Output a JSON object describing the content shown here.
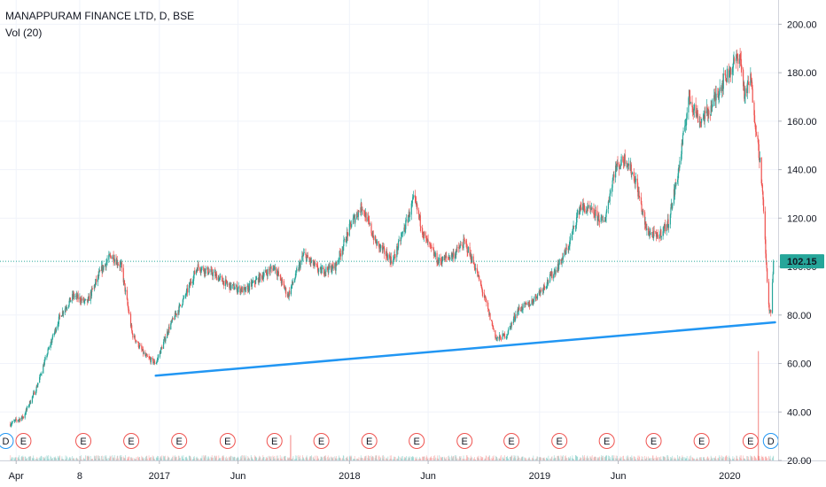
{
  "header": {
    "title": "MANAPPURAM FINANCE LTD, D, BSE",
    "indicator": "Vol (20)"
  },
  "colors": {
    "up": "#26a69a",
    "down": "#ef5350",
    "trendline": "#2196f3",
    "price_line": "#26a69a",
    "badge_dividend": "#2196f3",
    "badge_earnings": "#ef5350"
  },
  "chart_data": {
    "type": "candlestick",
    "title": "MANAPPURAM FINANCE LTD, D, BSE",
    "ylim": [
      20,
      210
    ],
    "y_ticks": [
      20,
      40,
      60,
      80,
      100,
      120,
      140,
      160,
      180,
      200
    ],
    "y_tick_labels": [
      "20.00",
      "40.00",
      "60.00",
      "80.00",
      "100.00",
      "120.00",
      "140.00",
      "160.00",
      "180.00",
      "200.00"
    ],
    "x_labels": [
      "Apr",
      "8",
      "2017",
      "Jun",
      "2018",
      "Jun",
      "2019",
      "Jun",
      "2020"
    ],
    "x_label_dates": [
      "2016-04",
      "2016-08",
      "2017-01",
      "2017-06",
      "2018-01",
      "2018-06",
      "2019-01",
      "2019-06",
      "2020-01"
    ],
    "last_price": 102.15,
    "last_price_label": "102.15",
    "price_path": [
      [
        "2016-03-20",
        35
      ],
      [
        "2016-04-15",
        38
      ],
      [
        "2016-05-10",
        50
      ],
      [
        "2016-06-01",
        65
      ],
      [
        "2016-06-25",
        80
      ],
      [
        "2016-07-20",
        88
      ],
      [
        "2016-08-15",
        85
      ],
      [
        "2016-09-10",
        98
      ],
      [
        "2016-10-01",
        105
      ],
      [
        "2016-10-20",
        100
      ],
      [
        "2016-11-10",
        72
      ],
      [
        "2016-12-05",
        63
      ],
      [
        "2016-12-25",
        60
      ],
      [
        "2017-01-20",
        75
      ],
      [
        "2017-02-20",
        88
      ],
      [
        "2017-03-15",
        100
      ],
      [
        "2017-04-15",
        97
      ],
      [
        "2017-05-15",
        92
      ],
      [
        "2017-06-15",
        90
      ],
      [
        "2017-07-10",
        95
      ],
      [
        "2017-08-10",
        100
      ],
      [
        "2017-09-05",
        88
      ],
      [
        "2017-10-05",
        105
      ],
      [
        "2017-11-05",
        98
      ],
      [
        "2017-12-05",
        100
      ],
      [
        "2018-01-05",
        118
      ],
      [
        "2018-01-25",
        125
      ],
      [
        "2018-02-20",
        110
      ],
      [
        "2018-03-25",
        102
      ],
      [
        "2018-04-20",
        118
      ],
      [
        "2018-05-05",
        128
      ],
      [
        "2018-05-25",
        112
      ],
      [
        "2018-06-20",
        102
      ],
      [
        "2018-07-20",
        105
      ],
      [
        "2018-08-10",
        110
      ],
      [
        "2018-08-30",
        100
      ],
      [
        "2018-09-20",
        85
      ],
      [
        "2018-10-10",
        70
      ],
      [
        "2018-10-30",
        72
      ],
      [
        "2018-11-20",
        82
      ],
      [
        "2018-12-15",
        85
      ],
      [
        "2019-01-10",
        92
      ],
      [
        "2019-02-05",
        100
      ],
      [
        "2019-02-25",
        108
      ],
      [
        "2019-03-20",
        125
      ],
      [
        "2019-04-15",
        122
      ],
      [
        "2019-05-05",
        118
      ],
      [
        "2019-05-25",
        140
      ],
      [
        "2019-06-15",
        145
      ],
      [
        "2019-07-05",
        135
      ],
      [
        "2019-07-25",
        115
      ],
      [
        "2019-08-15",
        112
      ],
      [
        "2019-09-05",
        118
      ],
      [
        "2019-09-25",
        140
      ],
      [
        "2019-10-15",
        170
      ],
      [
        "2019-11-05",
        160
      ],
      [
        "2019-11-25",
        165
      ],
      [
        "2019-12-15",
        175
      ],
      [
        "2020-01-05",
        182
      ],
      [
        "2020-01-20",
        188
      ],
      [
        "2020-01-30",
        170
      ],
      [
        "2020-02-10",
        178
      ],
      [
        "2020-02-20",
        158
      ],
      [
        "2020-03-01",
        140
      ],
      [
        "2020-03-08",
        115
      ],
      [
        "2020-03-15",
        85
      ],
      [
        "2020-03-20",
        80
      ],
      [
        "2020-03-25",
        102.15
      ]
    ],
    "trendline": {
      "start": [
        "2016-12-25",
        55
      ],
      "end": [
        "2020-03-28",
        77
      ]
    },
    "volume_spikes": [
      [
        "2017-09-10",
        0.22
      ],
      [
        "2020-02-25",
        0.95
      ]
    ],
    "events": [
      {
        "type": "D",
        "date": "2016-03-12"
      },
      {
        "type": "E",
        "date": "2016-04-15"
      },
      {
        "type": "E",
        "date": "2016-08-08"
      },
      {
        "type": "E",
        "date": "2016-11-08"
      },
      {
        "type": "E",
        "date": "2017-02-08"
      },
      {
        "type": "E",
        "date": "2017-05-12"
      },
      {
        "type": "E",
        "date": "2017-08-10"
      },
      {
        "type": "E",
        "date": "2017-11-08"
      },
      {
        "type": "E",
        "date": "2018-02-08"
      },
      {
        "type": "E",
        "date": "2018-05-10"
      },
      {
        "type": "E",
        "date": "2018-08-10"
      },
      {
        "type": "E",
        "date": "2018-11-08"
      },
      {
        "type": "E",
        "date": "2019-02-08"
      },
      {
        "type": "E",
        "date": "2019-05-10"
      },
      {
        "type": "E",
        "date": "2019-08-08"
      },
      {
        "type": "E",
        "date": "2019-11-08"
      },
      {
        "type": "E",
        "date": "2020-02-10"
      },
      {
        "type": "D",
        "date": "2020-03-20"
      }
    ]
  }
}
